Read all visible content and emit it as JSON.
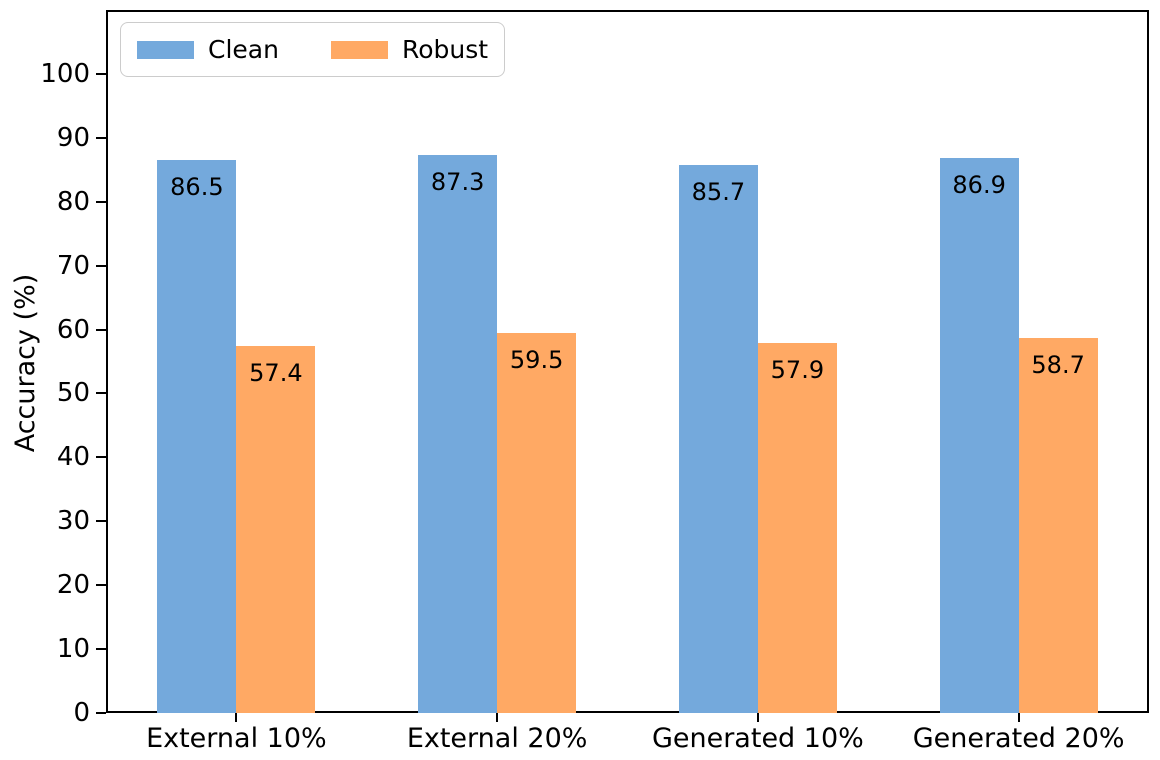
{
  "chart_data": {
    "type": "bar",
    "title": "",
    "xlabel": "",
    "ylabel": "Accuracy (%)",
    "ylim": [
      0,
      110
    ],
    "yticks": [
      0,
      10,
      20,
      30,
      40,
      50,
      60,
      70,
      80,
      90,
      100
    ],
    "categories": [
      "External 10%",
      "External 20%",
      "Generated 10%",
      "Generated 20%"
    ],
    "series": [
      {
        "name": "Clean",
        "color": "#74a9dc",
        "values": [
          86.5,
          87.3,
          85.7,
          86.9
        ]
      },
      {
        "name": "Robust",
        "color": "#ffa964",
        "values": [
          57.4,
          59.5,
          57.9,
          58.7
        ]
      }
    ],
    "bar_value_labels": true,
    "legend_position": "upper left",
    "grid": false
  }
}
